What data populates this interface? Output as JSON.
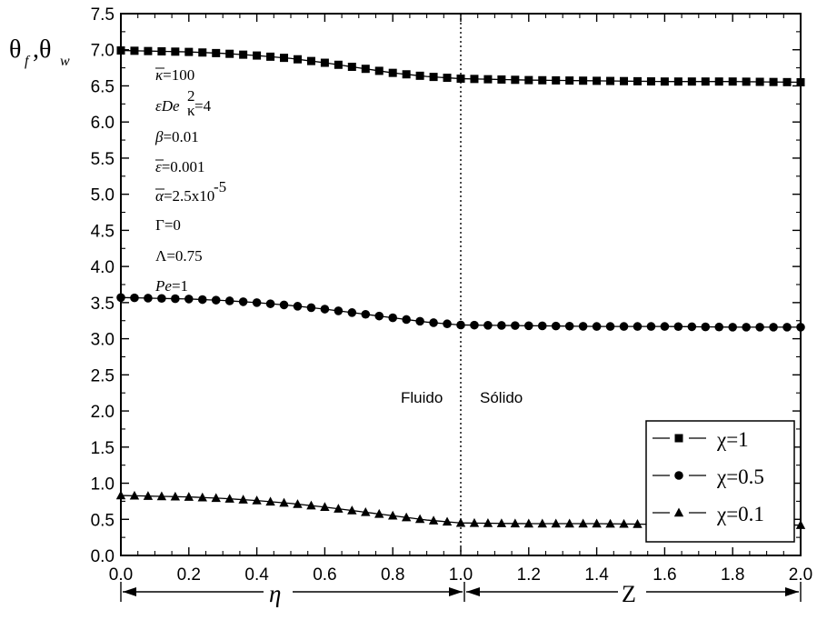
{
  "chart_data": {
    "type": "line",
    "ylabel": "θ_f, θ_w",
    "ylim": [
      0.0,
      7.5
    ],
    "xlim": [
      0.0,
      2.0
    ],
    "x_ticks": [
      "0.0",
      "0.2",
      "0.4",
      "0.6",
      "0.8",
      "1.0",
      "1.2",
      "1.4",
      "1.6",
      "1.8",
      "2.0"
    ],
    "y_ticks": [
      "0.0",
      "0.5",
      "1.0",
      "1.5",
      "2.0",
      "2.5",
      "3.0",
      "3.5",
      "4.0",
      "4.5",
      "5.0",
      "5.5",
      "6.0",
      "6.5",
      "7.0",
      "7.5"
    ],
    "grid": false,
    "series": [
      {
        "name": "χ=1",
        "marker": "square",
        "x": [
          0.0,
          0.1,
          0.2,
          0.3,
          0.4,
          0.5,
          0.6,
          0.7,
          0.8,
          0.9,
          1.0,
          1.2,
          1.4,
          1.6,
          1.8,
          2.0
        ],
        "y": [
          6.99,
          6.98,
          6.97,
          6.95,
          6.92,
          6.88,
          6.82,
          6.75,
          6.68,
          6.63,
          6.6,
          6.58,
          6.57,
          6.56,
          6.56,
          6.55
        ]
      },
      {
        "name": "χ=0.5",
        "marker": "circle",
        "x": [
          0.0,
          0.1,
          0.2,
          0.3,
          0.4,
          0.5,
          0.6,
          0.7,
          0.8,
          0.9,
          1.0,
          1.2,
          1.4,
          1.6,
          1.8,
          2.0
        ],
        "y": [
          3.57,
          3.56,
          3.55,
          3.53,
          3.5,
          3.46,
          3.41,
          3.35,
          3.29,
          3.23,
          3.19,
          3.18,
          3.17,
          3.17,
          3.16,
          3.16
        ]
      },
      {
        "name": "χ=0.1",
        "marker": "triangle",
        "x": [
          0.0,
          0.1,
          0.2,
          0.3,
          0.4,
          0.5,
          0.6,
          0.7,
          0.8,
          0.9,
          1.0,
          1.2,
          1.4,
          1.6,
          1.8,
          2.0
        ],
        "y": [
          0.83,
          0.82,
          0.81,
          0.79,
          0.76,
          0.72,
          0.67,
          0.61,
          0.55,
          0.49,
          0.45,
          0.44,
          0.44,
          0.43,
          0.43,
          0.42
        ]
      }
    ],
    "legend_placement": "lower-right",
    "vline": {
      "x": 1.0,
      "style": "dotted"
    },
    "annotations": {
      "parameters": [
        "κ=100",
        "εDe²κ=4",
        "β=0.01",
        "ε=0.001",
        "α=2.5x10⁻⁵",
        "Γ=0",
        "Λ=0.75",
        "Pe=1"
      ],
      "fluid_label": "Fluido",
      "solid_label": "Sólido",
      "eta_label": "η",
      "z_label": "Z"
    }
  }
}
